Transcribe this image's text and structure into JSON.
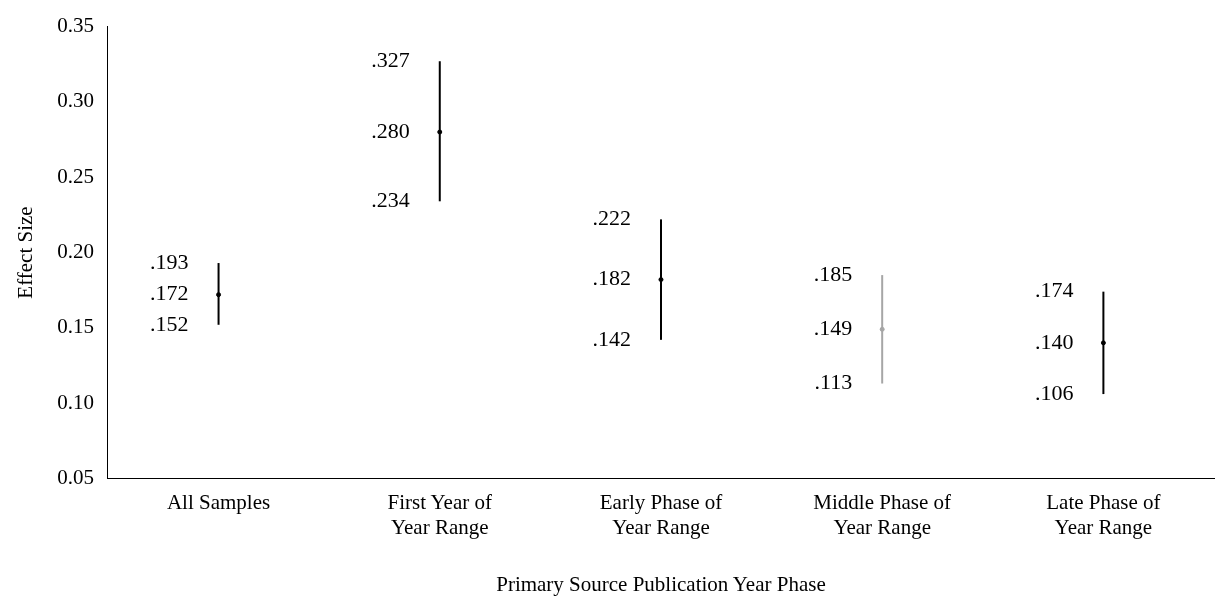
{
  "chart_data": {
    "type": "scatter",
    "xlabel": "Primary Source Publication Year Phase",
    "ylabel": "Effect Size",
    "categories": [
      "All Samples",
      "First Year of Year Range",
      "Early Phase of Year Range",
      "Middle Phase of Year Range",
      "Late Phase of Year Range"
    ],
    "values": [
      0.172,
      0.28,
      0.182,
      0.149,
      0.14
    ],
    "value_labels": [
      ".172",
      ".280",
      ".182",
      ".149",
      ".140"
    ],
    "errors": [
      [
        0.152,
        0.193
      ],
      [
        0.234,
        0.327
      ],
      [
        0.142,
        0.222
      ],
      [
        0.113,
        0.185
      ],
      [
        0.106,
        0.174
      ]
    ],
    "colors": [
      "#000000",
      "#000000",
      "#000000",
      "#a6a6a6",
      "#000000"
    ],
    "marker": "circle",
    "grid": false,
    "legend": false,
    "ylim": [
      0.05,
      0.35
    ],
    "yticks": [
      {
        "value": 0.05,
        "label": "0.05"
      },
      {
        "value": 0.1,
        "label": "0.10"
      },
      {
        "value": 0.15,
        "label": "0.15"
      },
      {
        "value": 0.2,
        "label": "0.20"
      },
      {
        "value": 0.25,
        "label": "0.25"
      },
      {
        "value": 0.3,
        "label": "0.30"
      },
      {
        "value": 0.35,
        "label": "0.35"
      }
    ],
    "annotations": [
      ".193",
      ".152",
      ".327",
      ".234",
      ".222",
      ".142",
      ".185",
      ".113",
      ".174",
      ".106"
    ]
  }
}
